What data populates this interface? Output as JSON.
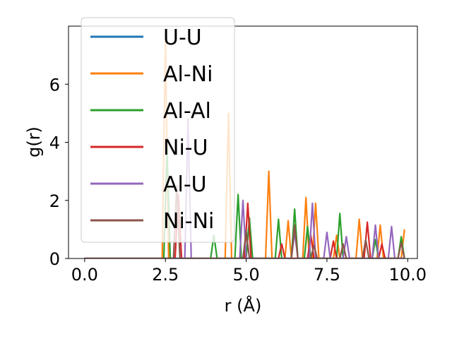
{
  "chart_data": {
    "type": "line",
    "xlabel": "r (Å)",
    "ylabel": "g(r)",
    "xlim": [
      -0.5,
      10.3
    ],
    "ylim": [
      0,
      8.0
    ],
    "xticks": [
      0.0,
      2.5,
      5.0,
      7.5,
      10.0
    ],
    "xtick_labels": [
      "0.0",
      "2.5",
      "5.0",
      "7.5",
      "10.0"
    ],
    "yticks": [
      0,
      2,
      4,
      6
    ],
    "ytick_labels": [
      "0",
      "2",
      "4",
      "6"
    ],
    "grid": false,
    "legend_position": "top-left",
    "series": [
      {
        "name": "U-U",
        "color": "#1f77b4",
        "x": [
          0,
          9.9
        ],
        "y": [
          0,
          0
        ]
      },
      {
        "name": "Al-Ni",
        "color": "#ff7f0e",
        "x": [
          0,
          2.4,
          2.5,
          2.6,
          4.35,
          4.45,
          4.55,
          5.6,
          5.7,
          5.8,
          6.2,
          6.3,
          6.4,
          6.75,
          6.85,
          6.95,
          7.05,
          7.15,
          7.25,
          7.7,
          7.8,
          7.9,
          8.4,
          8.5,
          8.6,
          9.05,
          9.15,
          9.25,
          9.8,
          9.9
        ],
        "y": [
          0,
          0,
          7.5,
          0,
          0,
          5.0,
          0,
          0,
          3.0,
          0,
          0,
          1.3,
          0,
          0,
          2.1,
          0,
          0,
          1.9,
          0,
          0,
          0.8,
          0,
          0,
          1.35,
          0,
          0,
          1.15,
          0,
          0,
          1.0
        ]
      },
      {
        "name": "Al-Al",
        "color": "#2ca02c",
        "x": [
          0,
          2.45,
          2.55,
          2.65,
          3.9,
          4.0,
          4.1,
          4.65,
          4.75,
          4.85,
          5.0,
          5.1,
          5.2,
          5.9,
          6.0,
          6.1,
          6.4,
          6.5,
          6.6,
          6.8,
          6.9,
          7.0,
          7.8,
          7.9,
          8.0,
          8.9,
          9.0,
          9.1,
          9.7,
          9.8,
          9.9
        ],
        "y": [
          0,
          0,
          3.8,
          0,
          0,
          0.8,
          0,
          0,
          2.2,
          0,
          0,
          1.4,
          0,
          0,
          1.35,
          0,
          0,
          1.7,
          0,
          0,
          1.1,
          0,
          0,
          1.55,
          0,
          0,
          0.65,
          0,
          0,
          0.75,
          0
        ]
      },
      {
        "name": "Ni-U",
        "color": "#d62728",
        "x": [
          0,
          2.8,
          2.9,
          3.0,
          4.95,
          5.05,
          5.15,
          6.0,
          6.1,
          6.2,
          6.9,
          7.0,
          7.1,
          7.6,
          7.7,
          7.8,
          8.65,
          8.75,
          8.85,
          9.1,
          9.2,
          9.3,
          9.9
        ],
        "y": [
          0,
          0,
          2.2,
          0,
          0,
          1.9,
          0,
          0,
          0.5,
          0,
          0,
          0.8,
          0,
          0,
          0.6,
          0,
          0,
          1.25,
          0,
          0,
          0.5,
          0,
          0
        ]
      },
      {
        "name": "Al-U",
        "color": "#9467bd",
        "x": [
          0,
          3.1,
          3.2,
          3.3,
          4.8,
          4.9,
          5.0,
          6.4,
          6.5,
          6.6,
          6.95,
          7.05,
          7.15,
          7.4,
          7.5,
          7.6,
          8.0,
          8.1,
          8.2,
          8.9,
          9.0,
          9.1,
          9.4,
          9.5,
          9.6,
          9.9
        ],
        "y": [
          0,
          0,
          4.8,
          0,
          0,
          2.0,
          0,
          0,
          0.9,
          0,
          0,
          1.9,
          0,
          0,
          0.9,
          0,
          0,
          0.75,
          0,
          0,
          1.15,
          0,
          0,
          1.1,
          0,
          0
        ]
      },
      {
        "name": "Ni-Ni",
        "color": "#8c564b",
        "x": [
          0,
          2.75,
          2.85,
          2.95,
          4.9,
          5.0,
          5.1,
          6.4,
          6.5,
          6.6,
          7.0,
          7.1,
          7.2,
          7.9,
          8.0,
          8.1,
          8.6,
          8.7,
          8.8,
          9.7,
          9.8,
          9.9
        ],
        "y": [
          0,
          0,
          2.5,
          0,
          0,
          0.95,
          0,
          0,
          1.15,
          0,
          0,
          0.45,
          0,
          0,
          0.5,
          0,
          0,
          0.65,
          0,
          0,
          0.55,
          0
        ]
      }
    ]
  }
}
